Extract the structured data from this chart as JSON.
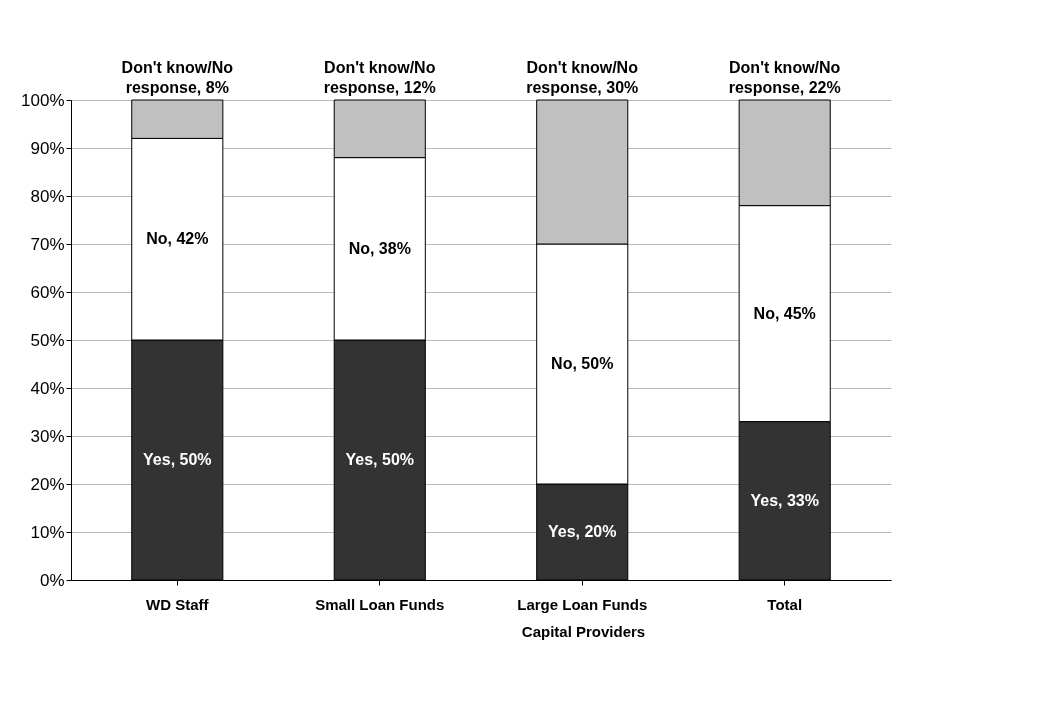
{
  "chart_data": {
    "type": "bar",
    "stacked": true,
    "categories": [
      "WD Staff",
      "Small Loan Funds",
      "Large Loan Funds",
      "Total"
    ],
    "series": [
      {
        "color": "#333333",
        "values": [
          50,
          50,
          20,
          33
        ],
        "value_labels": [
          "Yes, 50%",
          "Yes, 50%",
          "Yes, 20%",
          "Yes, 33%"
        ]
      },
      {
        "color": "#ffffff",
        "values": [
          42,
          38,
          50,
          45
        ],
        "value_labels": [
          "No, 42%",
          "No, 38%",
          "No, 50%",
          "No, 45%"
        ]
      },
      {
        "color": "#c0c0c0",
        "values": [
          8,
          12,
          30,
          22
        ],
        "value_labels": [
          "Don't know/No response, 8%",
          "Don't know/No response, 12%",
          "Don't know/No response, 30%",
          "Don't know/No response, 22%"
        ]
      }
    ],
    "ylim": [
      0,
      100
    ],
    "yticks": [
      {
        "value": 0,
        "label": "0%"
      },
      {
        "value": 10,
        "label": "10%"
      },
      {
        "value": 20,
        "label": "20%"
      },
      {
        "value": 30,
        "label": "30%"
      },
      {
        "value": 40,
        "label": "40%"
      },
      {
        "value": 50,
        "label": "50%"
      },
      {
        "value": 60,
        "label": "60%"
      },
      {
        "value": 70,
        "label": "70%"
      },
      {
        "value": 80,
        "label": "80%"
      },
      {
        "value": 90,
        "label": "90%"
      },
      {
        "value": 100,
        "label": "100%"
      }
    ],
    "grid": "y",
    "annotations": [
      "Capital Providers"
    ]
  }
}
